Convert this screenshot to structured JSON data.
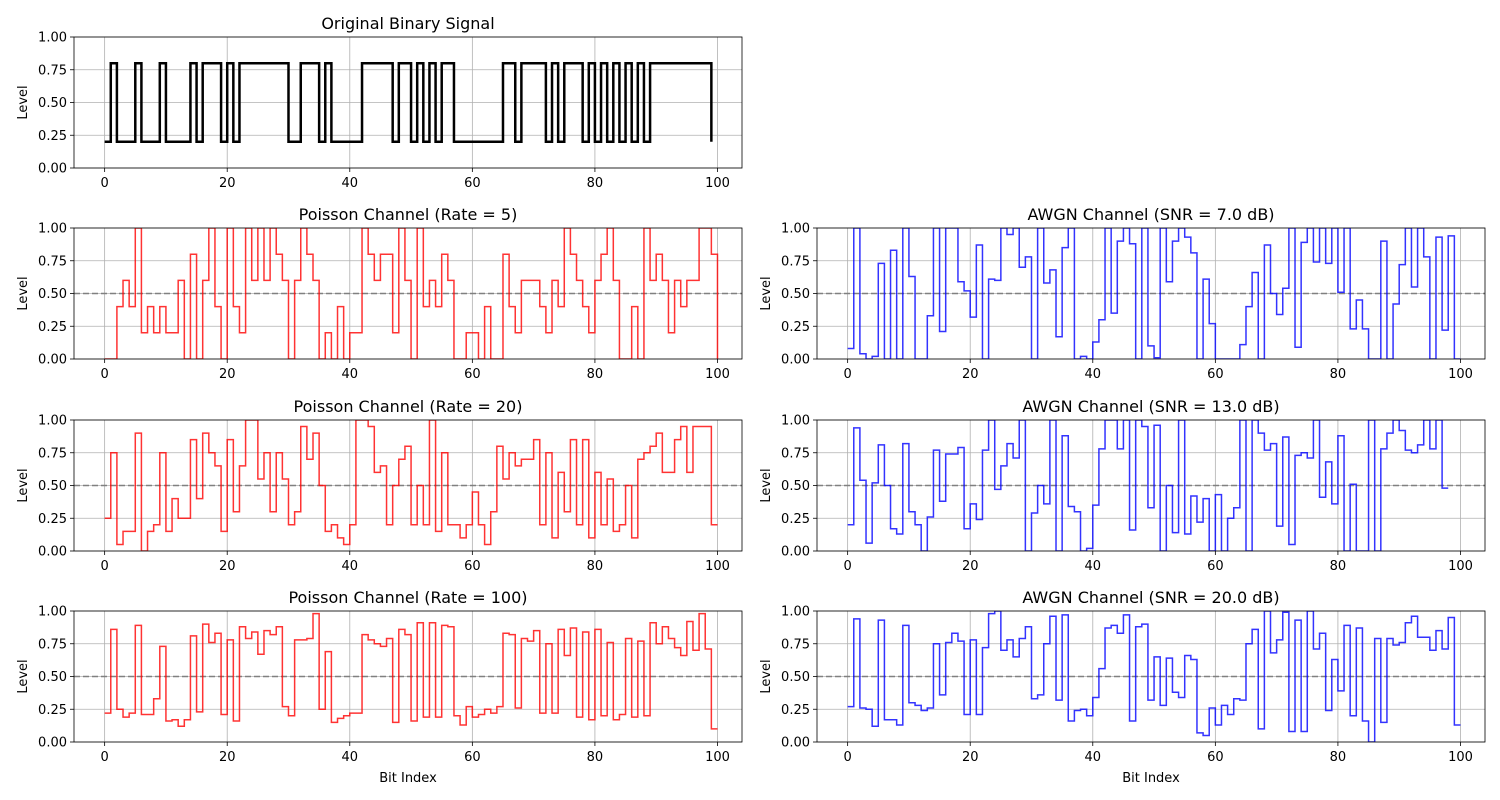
{
  "chart_data": [
    {
      "type": "line",
      "step": true,
      "title": "Original Binary Signal",
      "xlabel": "",
      "ylabel": "Level",
      "xlim": [
        -5,
        104
      ],
      "ylim": [
        0,
        1
      ],
      "xticks": [
        "0",
        "20",
        "40",
        "60",
        "80",
        "100"
      ],
      "yticks": [
        "0.00",
        "0.25",
        "0.50",
        "0.75",
        "1.00"
      ],
      "grid": true,
      "threshold": null,
      "color": "#000000",
      "values": [
        0.2,
        0.8,
        0.2,
        0.2,
        0.2,
        0.8,
        0.2,
        0.2,
        0.2,
        0.8,
        0.2,
        0.2,
        0.2,
        0.2,
        0.8,
        0.2,
        0.8,
        0.8,
        0.8,
        0.2,
        0.8,
        0.2,
        0.8,
        0.8,
        0.8,
        0.8,
        0.8,
        0.8,
        0.8,
        0.8,
        0.2,
        0.2,
        0.8,
        0.8,
        0.8,
        0.2,
        0.8,
        0.2,
        0.2,
        0.2,
        0.2,
        0.2,
        0.8,
        0.8,
        0.8,
        0.8,
        0.8,
        0.2,
        0.8,
        0.8,
        0.2,
        0.8,
        0.2,
        0.8,
        0.2,
        0.8,
        0.8,
        0.2,
        0.2,
        0.2,
        0.2,
        0.2,
        0.2,
        0.2,
        0.2,
        0.8,
        0.8,
        0.2,
        0.8,
        0.8,
        0.8,
        0.8,
        0.2,
        0.8,
        0.2,
        0.8,
        0.8,
        0.8,
        0.2,
        0.8,
        0.2,
        0.8,
        0.2,
        0.8,
        0.2,
        0.8,
        0.2,
        0.8,
        0.2,
        0.8,
        0.8,
        0.8,
        0.8,
        0.8,
        0.8,
        0.8,
        0.8,
        0.8,
        0.8,
        0.2
      ]
    },
    {
      "type": "line",
      "step": true,
      "title": "Poisson Channel (Rate = 5)",
      "xlabel": "",
      "ylabel": "Level",
      "xlim": [
        -5,
        104
      ],
      "ylim": [
        0,
        1
      ],
      "xticks": [
        "0",
        "20",
        "40",
        "60",
        "80",
        "100"
      ],
      "yticks": [
        "0.00",
        "0.25",
        "0.50",
        "0.75",
        "1.00"
      ],
      "grid": true,
      "threshold": 0.5,
      "color": "#ff0000",
      "values": [
        0.0,
        0.0,
        0.4,
        0.6,
        0.4,
        1.0,
        0.2,
        0.4,
        0.2,
        0.4,
        0.2,
        0.2,
        0.6,
        0.0,
        0.8,
        0.0,
        0.6,
        1.0,
        0.4,
        0.0,
        1.0,
        0.4,
        0.2,
        1.0,
        0.6,
        1.0,
        0.6,
        1.0,
        0.8,
        0.6,
        0.0,
        0.6,
        1.0,
        0.8,
        0.6,
        0.0,
        0.2,
        0.0,
        0.4,
        0.0,
        0.2,
        0.2,
        1.0,
        0.8,
        0.6,
        0.8,
        0.8,
        0.2,
        1.0,
        0.6,
        0.0,
        1.0,
        0.4,
        0.6,
        0.4,
        0.8,
        0.6,
        0.0,
        0.0,
        0.2,
        0.2,
        0.0,
        0.4,
        0.0,
        0.0,
        0.8,
        0.4,
        0.2,
        0.6,
        0.6,
        0.6,
        0.4,
        0.2,
        0.6,
        0.4,
        1.0,
        0.8,
        0.6,
        0.4,
        0.2,
        0.6,
        0.8,
        1.0,
        0.6,
        0.0,
        0.0,
        0.4,
        0.0,
        1.0,
        0.6,
        0.8,
        0.6,
        0.2,
        0.6,
        0.4,
        0.6,
        0.6,
        1.0,
        1.0,
        0.8,
        0.0
      ]
    },
    {
      "type": "line",
      "step": true,
      "title": "AWGN Channel (SNR = 7.0 dB)",
      "xlabel": "",
      "ylabel": "Level",
      "xlim": [
        -5,
        104
      ],
      "ylim": [
        0,
        1
      ],
      "xticks": [
        "0",
        "20",
        "40",
        "60",
        "80",
        "100"
      ],
      "yticks": [
        "0.00",
        "0.25",
        "0.50",
        "0.75",
        "1.00"
      ],
      "grid": true,
      "threshold": 0.5,
      "color": "#0000ff",
      "values": [
        0.08,
        1.0,
        0.04,
        0.0,
        0.02,
        0.73,
        0.0,
        0.83,
        0.0,
        1.0,
        0.63,
        0.0,
        0.0,
        0.33,
        1.0,
        0.21,
        1.0,
        1.0,
        0.59,
        0.52,
        0.32,
        0.87,
        0.0,
        0.61,
        0.6,
        1.0,
        0.95,
        1.0,
        0.7,
        0.78,
        0.0,
        1.0,
        0.58,
        0.68,
        0.17,
        0.85,
        1.0,
        0.0,
        0.02,
        0.0,
        0.13,
        0.3,
        1.0,
        0.35,
        0.9,
        1.0,
        0.88,
        0.0,
        1.0,
        0.1,
        0.01,
        1.0,
        0.59,
        0.9,
        1.0,
        0.93,
        0.81,
        0.0,
        0.61,
        0.27,
        0.0,
        0.0,
        0.0,
        0.0,
        0.11,
        0.4,
        0.66,
        0.0,
        0.87,
        0.5,
        0.34,
        0.54,
        1.0,
        0.09,
        0.89,
        1.0,
        0.74,
        1.0,
        0.73,
        1.0,
        0.51,
        1.0,
        0.23,
        0.45,
        0.23,
        0.0,
        0.0,
        0.9,
        0.0,
        0.42,
        0.72,
        1.0,
        0.55,
        1.0,
        0.78,
        0.0,
        0.93,
        0.22,
        0.94,
        0.0,
        0.0
      ]
    },
    {
      "type": "line",
      "step": true,
      "title": "Poisson Channel (Rate = 20)",
      "xlabel": "",
      "ylabel": "Level",
      "xlim": [
        -5,
        104
      ],
      "ylim": [
        0,
        1
      ],
      "xticks": [
        "0",
        "20",
        "40",
        "60",
        "80",
        "100"
      ],
      "yticks": [
        "0.00",
        "0.25",
        "0.50",
        "0.75",
        "1.00"
      ],
      "grid": true,
      "threshold": 0.5,
      "color": "#ff0000",
      "values": [
        0.25,
        0.75,
        0.05,
        0.15,
        0.15,
        0.9,
        0.0,
        0.15,
        0.2,
        0.75,
        0.15,
        0.4,
        0.25,
        0.25,
        0.85,
        0.4,
        0.9,
        0.75,
        0.65,
        0.15,
        0.85,
        0.3,
        0.65,
        1.0,
        1.0,
        0.55,
        0.75,
        0.3,
        0.75,
        0.55,
        0.2,
        0.3,
        0.95,
        0.7,
        0.9,
        0.5,
        0.15,
        0.2,
        0.1,
        0.05,
        0.2,
        1.0,
        1.0,
        0.95,
        0.6,
        0.65,
        0.2,
        0.5,
        0.7,
        0.8,
        0.2,
        0.5,
        0.2,
        1.0,
        0.15,
        0.75,
        0.2,
        0.2,
        0.1,
        0.2,
        0.45,
        0.2,
        0.05,
        0.3,
        0.8,
        0.55,
        0.75,
        0.65,
        0.7,
        0.7,
        0.85,
        0.2,
        0.75,
        0.1,
        0.6,
        0.3,
        0.85,
        0.2,
        0.85,
        0.1,
        0.6,
        0.2,
        0.55,
        0.15,
        0.2,
        0.5,
        0.1,
        0.7,
        0.75,
        0.8,
        0.9,
        0.6,
        0.6,
        0.85,
        0.95,
        0.6,
        0.95,
        0.95,
        0.95,
        0.2,
        0.2
      ]
    },
    {
      "type": "line",
      "step": true,
      "title": "AWGN Channel (SNR = 13.0 dB)",
      "xlabel": "",
      "ylabel": "Level",
      "xlim": [
        -5,
        104
      ],
      "ylim": [
        0,
        1
      ],
      "xticks": [
        "0",
        "20",
        "40",
        "60",
        "80",
        "100"
      ],
      "yticks": [
        "0.00",
        "0.25",
        "0.50",
        "0.75",
        "1.00"
      ],
      "grid": true,
      "threshold": 0.5,
      "color": "#0000ff",
      "values": [
        0.2,
        0.94,
        0.54,
        0.06,
        0.52,
        0.81,
        0.5,
        0.17,
        0.13,
        0.82,
        0.3,
        0.2,
        0.0,
        0.26,
        0.77,
        0.38,
        0.74,
        0.74,
        0.79,
        0.17,
        0.36,
        0.24,
        0.77,
        1.0,
        0.47,
        0.65,
        0.82,
        0.71,
        1.0,
        0.0,
        0.29,
        0.5,
        0.36,
        1.0,
        0.0,
        0.88,
        0.34,
        0.3,
        0.0,
        0.02,
        0.35,
        0.78,
        1.0,
        1.0,
        0.78,
        1.0,
        0.16,
        1.0,
        0.95,
        0.33,
        0.96,
        0.0,
        0.5,
        0.14,
        1.0,
        0.13,
        0.42,
        0.22,
        0.4,
        0.0,
        0.43,
        0.0,
        0.25,
        0.33,
        1.0,
        0.0,
        1.0,
        0.9,
        0.77,
        0.82,
        0.19,
        0.87,
        0.05,
        0.73,
        0.75,
        0.71,
        1.0,
        0.41,
        0.68,
        0.36,
        0.88,
        0.0,
        0.51,
        0.0,
        0.0,
        1.0,
        0.0,
        0.78,
        0.9,
        1.0,
        0.92,
        0.77,
        0.75,
        0.81,
        1.0,
        0.78,
        1.0,
        0.48,
        0.48
      ]
    },
    {
      "type": "line",
      "step": true,
      "title": "Poisson Channel (Rate = 100)",
      "xlabel": "Bit Index",
      "ylabel": "Level",
      "xlim": [
        -5,
        104
      ],
      "ylim": [
        0,
        1
      ],
      "xticks": [
        "0",
        "20",
        "40",
        "60",
        "80",
        "100"
      ],
      "yticks": [
        "0.00",
        "0.25",
        "0.50",
        "0.75",
        "1.00"
      ],
      "grid": true,
      "threshold": 0.5,
      "color": "#ff0000",
      "values": [
        0.22,
        0.86,
        0.25,
        0.19,
        0.22,
        0.89,
        0.21,
        0.21,
        0.33,
        0.73,
        0.16,
        0.17,
        0.12,
        0.17,
        0.81,
        0.23,
        0.9,
        0.76,
        0.83,
        0.21,
        0.78,
        0.16,
        0.88,
        0.79,
        0.84,
        0.67,
        0.85,
        0.82,
        0.88,
        0.27,
        0.2,
        0.78,
        0.78,
        0.79,
        0.98,
        0.25,
        0.69,
        0.15,
        0.18,
        0.2,
        0.22,
        0.22,
        0.82,
        0.78,
        0.75,
        0.73,
        0.79,
        0.15,
        0.86,
        0.82,
        0.16,
        0.91,
        0.19,
        0.91,
        0.19,
        0.89,
        0.88,
        0.2,
        0.13,
        0.27,
        0.19,
        0.21,
        0.25,
        0.22,
        0.27,
        0.83,
        0.82,
        0.26,
        0.79,
        0.77,
        0.85,
        0.22,
        0.75,
        0.22,
        0.86,
        0.66,
        0.87,
        0.19,
        0.84,
        0.17,
        0.86,
        0.2,
        0.76,
        0.17,
        0.21,
        0.79,
        0.19,
        0.77,
        0.2,
        0.91,
        0.75,
        0.88,
        0.79,
        0.72,
        0.66,
        0.92,
        0.7,
        0.98,
        0.71,
        0.1,
        0.1
      ]
    },
    {
      "type": "line",
      "step": true,
      "title": "AWGN Channel (SNR = 20.0 dB)",
      "xlabel": "Bit Index",
      "ylabel": "Level",
      "xlim": [
        -5,
        104
      ],
      "ylim": [
        0,
        1
      ],
      "xticks": [
        "0",
        "20",
        "40",
        "60",
        "80",
        "100"
      ],
      "yticks": [
        "0.00",
        "0.25",
        "0.50",
        "0.75",
        "1.00"
      ],
      "grid": true,
      "threshold": 0.5,
      "color": "#0000ff",
      "values": [
        0.27,
        0.94,
        0.26,
        0.25,
        0.12,
        0.93,
        0.17,
        0.17,
        0.13,
        0.89,
        0.3,
        0.28,
        0.24,
        0.26,
        0.75,
        0.36,
        0.76,
        0.83,
        0.77,
        0.21,
        0.78,
        0.21,
        0.72,
        0.98,
        1.0,
        0.7,
        0.78,
        0.65,
        0.79,
        0.88,
        0.33,
        0.36,
        0.75,
        0.96,
        0.32,
        0.97,
        0.16,
        0.24,
        0.25,
        0.2,
        0.34,
        0.56,
        0.87,
        0.89,
        0.83,
        0.97,
        0.16,
        0.88,
        0.9,
        0.32,
        0.65,
        0.28,
        0.64,
        0.38,
        0.34,
        0.66,
        0.63,
        0.07,
        0.05,
        0.26,
        0.13,
        0.28,
        0.21,
        0.33,
        0.32,
        0.75,
        0.86,
        0.1,
        1.0,
        0.68,
        0.78,
        0.99,
        0.08,
        0.93,
        0.08,
        1.0,
        0.71,
        0.83,
        0.24,
        0.63,
        0.39,
        0.89,
        0.2,
        0.87,
        0.16,
        0.0,
        0.79,
        0.15,
        0.79,
        0.74,
        0.76,
        0.91,
        0.96,
        0.8,
        0.8,
        0.7,
        0.85,
        0.71,
        0.95,
        0.13,
        0.13
      ]
    }
  ]
}
